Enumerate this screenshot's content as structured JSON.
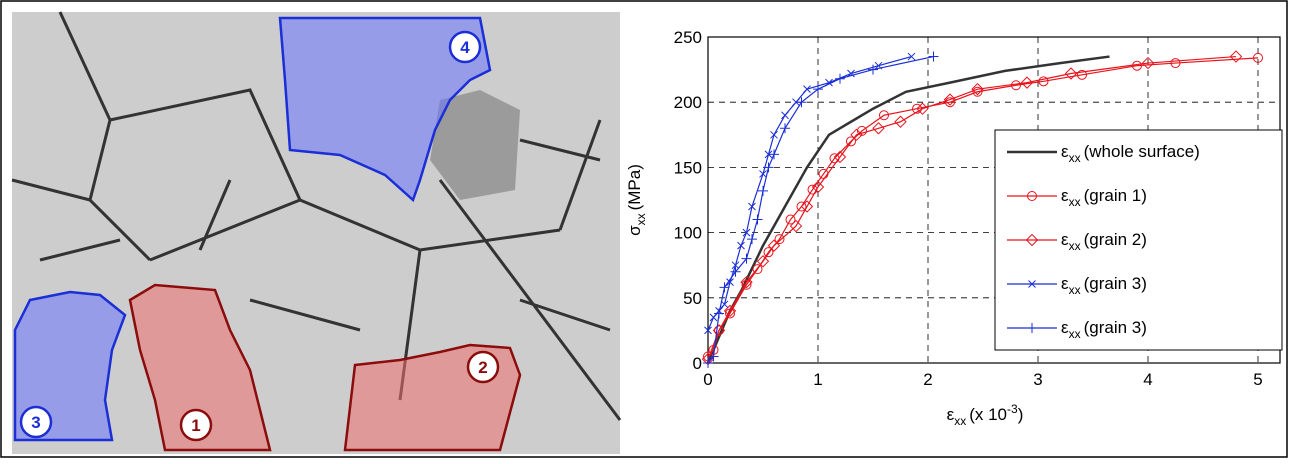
{
  "image_labels": [
    "1",
    "2",
    "3",
    "4"
  ],
  "chart_data": {
    "type": "line",
    "x_label": {
      "symbol": "ε",
      "sub": "xx",
      "text": "(x 10",
      "sup": "-3",
      "end": ")"
    },
    "y_label": {
      "symbol": "σ",
      "sub": "xx",
      "text": "(MPa)"
    },
    "legend_symbol": {
      "main": "ε",
      "sub": "xx"
    },
    "xlim": [
      0,
      5.2
    ],
    "ylim": [
      0,
      250
    ],
    "xticks": [
      0,
      1,
      2,
      3,
      4,
      5
    ],
    "yticks": [
      0,
      50,
      100,
      150,
      200,
      250
    ],
    "grid": true,
    "legend": "right",
    "series": [
      {
        "name": "(whole surface)",
        "color": "#333333",
        "marker": "none",
        "x": [
          0,
          0.1,
          0.2,
          0.3,
          0.5,
          0.7,
          0.9,
          1.1,
          1.3,
          1.5,
          1.8,
          2.2,
          2.7,
          3.2,
          3.65
        ],
        "values": [
          0,
          20,
          40,
          55,
          90,
          120,
          150,
          175,
          185,
          195,
          208,
          215,
          224,
          230,
          235
        ]
      },
      {
        "name": "(grain 1)",
        "color": "#e8141c",
        "marker": "circle",
        "x": [
          0,
          0.05,
          0.1,
          0.2,
          0.35,
          0.45,
          0.55,
          0.65,
          0.75,
          0.85,
          0.95,
          1.05,
          1.15,
          1.3,
          1.4,
          1.6,
          1.9,
          2.2,
          2.45,
          2.8,
          3.05,
          3.4,
          3.9,
          4.25,
          5.0
        ],
        "values": [
          5,
          10,
          25,
          38,
          60,
          72,
          85,
          95,
          110,
          120,
          133,
          145,
          157,
          170,
          178,
          190,
          195,
          200,
          208,
          213,
          216,
          221,
          228,
          230,
          234
        ]
      },
      {
        "name": "(grain 2)",
        "color": "#e8141c",
        "marker": "diamond",
        "x": [
          0,
          0.1,
          0.2,
          0.35,
          0.5,
          0.6,
          0.8,
          0.9,
          1.0,
          1.2,
          1.35,
          1.55,
          1.75,
          1.95,
          2.2,
          2.45,
          2.9,
          3.3,
          4.0,
          4.8
        ],
        "values": [
          3,
          25,
          40,
          62,
          78,
          90,
          105,
          120,
          135,
          158,
          175,
          180,
          185,
          195,
          202,
          210,
          215,
          222,
          230,
          235
        ]
      },
      {
        "name": "(grain 3)",
        "color": "#1a2fd6",
        "marker": "x",
        "x": [
          0,
          0.05,
          0.1,
          0.15,
          0.2,
          0.25,
          0.3,
          0.35,
          0.4,
          0.5,
          0.55,
          0.6,
          0.7,
          0.8,
          0.9,
          1.1,
          1.3,
          1.55,
          1.85
        ],
        "values": [
          25,
          35,
          40,
          45,
          62,
          75,
          90,
          100,
          120,
          145,
          160,
          175,
          190,
          200,
          210,
          215,
          222,
          228,
          235
        ]
      },
      {
        "name": "(grain 3)",
        "color": "#1a2fd6",
        "marker": "plus",
        "x": [
          0,
          0.05,
          0.1,
          0.15,
          0.25,
          0.35,
          0.4,
          0.45,
          0.5,
          0.55,
          0.6,
          0.7,
          0.85,
          1.0,
          1.2,
          1.5,
          2.05
        ],
        "values": [
          0,
          5,
          38,
          58,
          70,
          80,
          95,
          110,
          132,
          150,
          160,
          180,
          200,
          210,
          218,
          225,
          235
        ]
      }
    ]
  }
}
